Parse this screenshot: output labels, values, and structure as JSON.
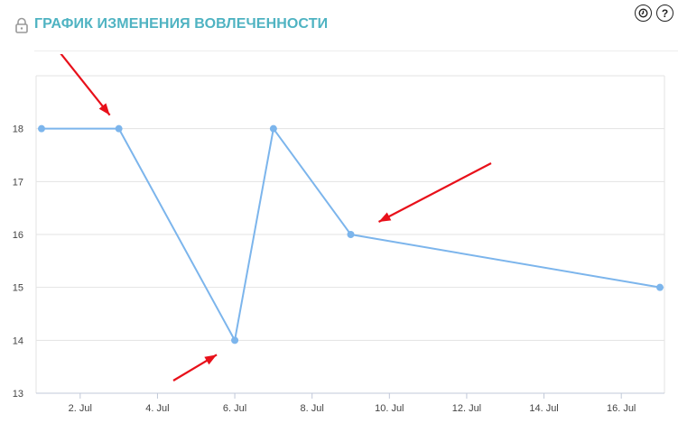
{
  "header": {
    "title": "ГРАФИК ИЗМЕНЕНИЯ ВОВЛЕЧЕННОСТИ",
    "lock_icon": "lock-icon",
    "clock_icon": "clock-icon",
    "help_label": "?"
  },
  "colors": {
    "title": "#4fb3c2",
    "line": "#7cb5ec",
    "annotation_arrows": "#e8101a"
  },
  "chart_data": {
    "type": "line",
    "title": "",
    "xlabel": "",
    "ylabel": "",
    "x_type": "date",
    "x": [
      "1. Jul",
      "3. Jul",
      "6. Jul",
      "7. Jul",
      "9. Jul",
      "17. Jul"
    ],
    "series": [
      {
        "values": [
          18,
          18,
          14,
          18,
          16,
          15
        ]
      }
    ],
    "x_ticks": [
      "2. Jul",
      "4. Jul",
      "6. Jul",
      "8. Jul",
      "10. Jul",
      "12. Jul",
      "14. Jul",
      "16. Jul"
    ],
    "y_ticks": [
      13,
      14,
      15,
      16,
      17,
      18
    ],
    "xlim": [
      "1. Jul",
      "17. Jul"
    ],
    "ylim": [
      13,
      19
    ],
    "grid": true,
    "legend": "none",
    "annotations": [
      {
        "type": "arrow",
        "points_to": "3. Jul"
      },
      {
        "type": "arrow",
        "points_to": "6. Jul"
      },
      {
        "type": "arrow",
        "points_to": "9. Jul"
      }
    ]
  }
}
